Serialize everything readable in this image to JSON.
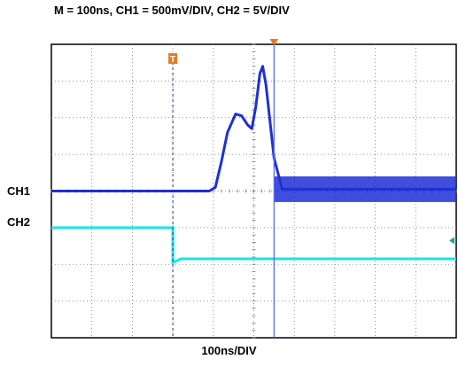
{
  "chart_data": {
    "type": "line",
    "title": "M = 100ns, CH1 = 500mV/DIV, CH2 = 5V/DIV",
    "xlabel": "100ns/DIV",
    "ylabel": "",
    "grid": true,
    "x_unit": "div",
    "y_unit": "div",
    "xlim": [
      0,
      10
    ],
    "ylim": [
      0,
      8
    ],
    "trigger_marker": "T",
    "trigger_x": 3.0,
    "cursor_x": 5.5,
    "colors": {
      "ch1": "#1f2fd6",
      "ch2": "#1ee3e8",
      "trigger": "#e87722",
      "cursor": "#5a6bff"
    },
    "series": [
      {
        "name": "CH1",
        "label_y": 4.0,
        "points": [
          [
            0,
            4.0
          ],
          [
            3.9,
            4.0
          ],
          [
            4.05,
            4.1
          ],
          [
            4.2,
            4.8
          ],
          [
            4.35,
            5.6
          ],
          [
            4.55,
            6.1
          ],
          [
            4.7,
            6.05
          ],
          [
            4.85,
            5.8
          ],
          [
            4.95,
            5.7
          ],
          [
            5.05,
            6.3
          ],
          [
            5.15,
            7.2
          ],
          [
            5.22,
            7.4
          ],
          [
            5.3,
            6.9
          ],
          [
            5.4,
            5.9
          ],
          [
            5.5,
            4.9
          ],
          [
            5.7,
            4.05
          ],
          [
            10,
            4.05
          ]
        ],
        "band_after_x": 5.5,
        "band_halfwidth": 0.35
      },
      {
        "name": "CH2",
        "label_y": 3.0,
        "points": [
          [
            0,
            3.0
          ],
          [
            3.0,
            3.0
          ],
          [
            3.0,
            2.05
          ],
          [
            3.1,
            2.1
          ],
          [
            3.2,
            2.15
          ],
          [
            10,
            2.15
          ]
        ]
      }
    ]
  }
}
